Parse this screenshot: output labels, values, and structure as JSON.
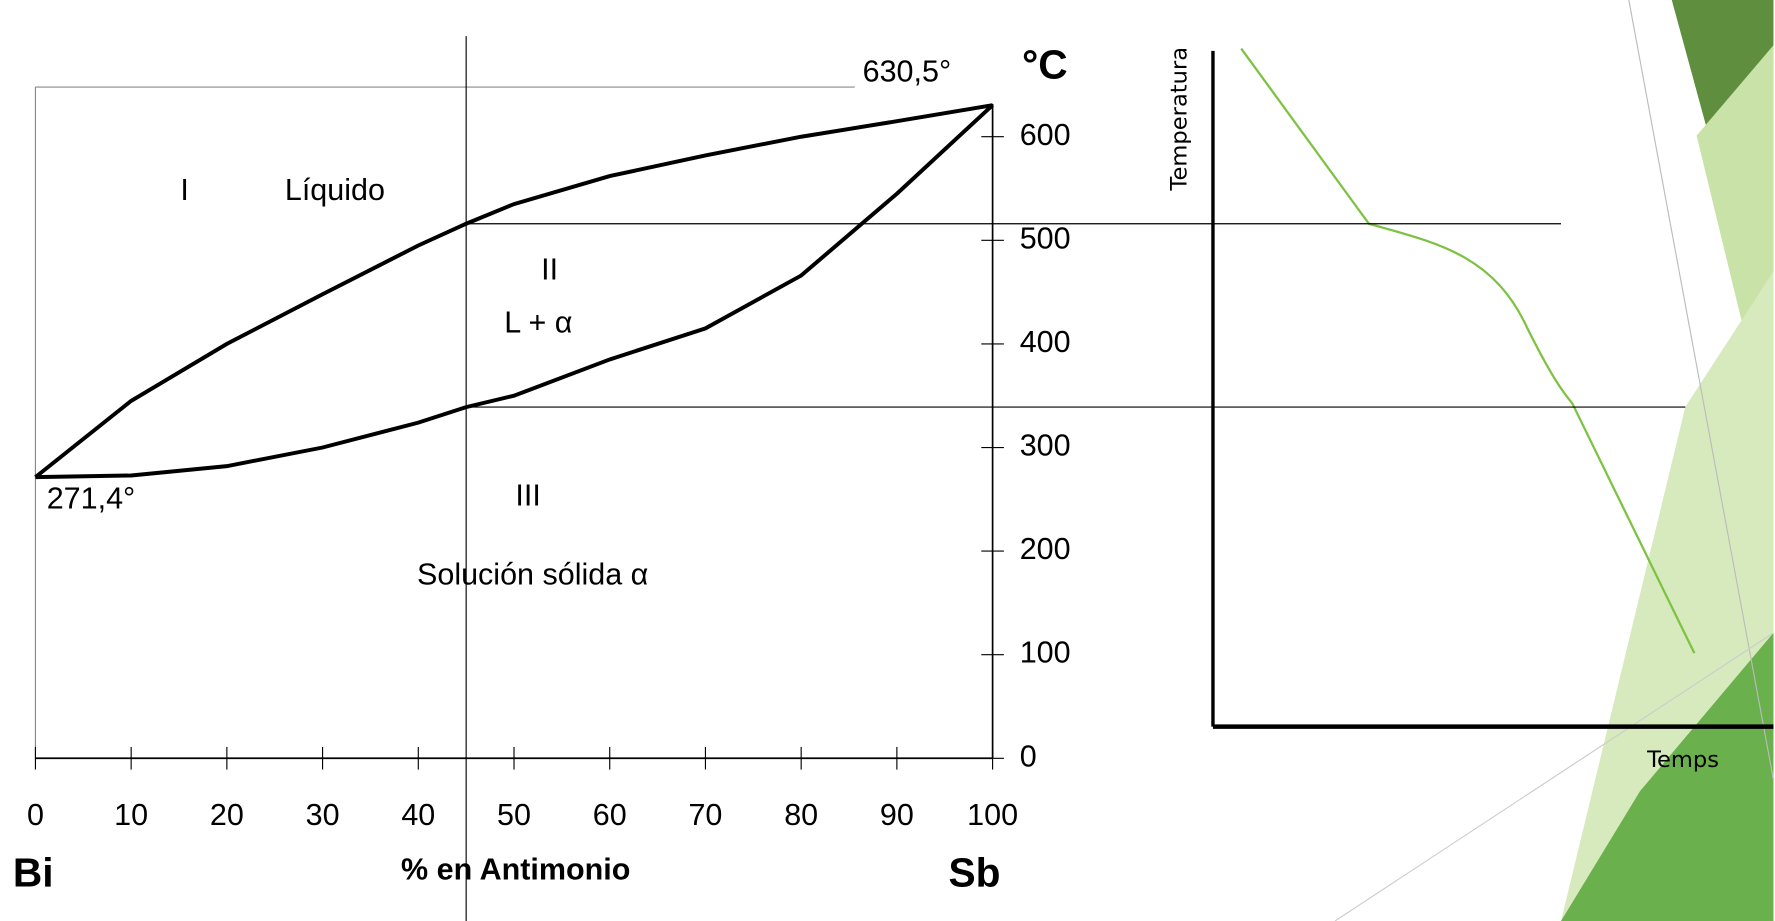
{
  "chart_data": {
    "type": "line",
    "x": [
      0,
      10,
      20,
      30,
      40,
      45,
      50,
      60,
      70,
      80,
      90,
      100
    ],
    "series": [
      {
        "color": "#000000",
        "values": [
          271.4,
          345,
          400,
          448,
          495,
          516,
          535,
          562,
          582,
          600,
          615,
          630.5
        ]
      },
      {
        "color": "#000000",
        "values": [
          271.4,
          273,
          282,
          300,
          324,
          339,
          350,
          385,
          415,
          466,
          545,
          630.5
        ]
      }
    ],
    "xlim": [
      0,
      100
    ],
    "ylim": [
      0,
      648
    ],
    "xticks": [
      0,
      10,
      20,
      30,
      40,
      50,
      60,
      70,
      80,
      90,
      100
    ],
    "yticks": [
      0,
      100,
      200,
      300,
      400,
      500,
      600
    ],
    "y_unit": "°C",
    "xlabel": "% en Antimonio",
    "x_left_label": "Bi",
    "x_right_label": "Sb",
    "annotations": [
      "630,5°",
      "271,4°",
      "I",
      "Líquido",
      "II",
      "L + α",
      "III",
      "Solución sólida α"
    ],
    "guide_x": 45,
    "guide_y": [
      516,
      339
    ]
  },
  "cooling_curve": {
    "ylabel": "Temperatura",
    "xlabel": "Temps",
    "color": "#7dc242"
  }
}
